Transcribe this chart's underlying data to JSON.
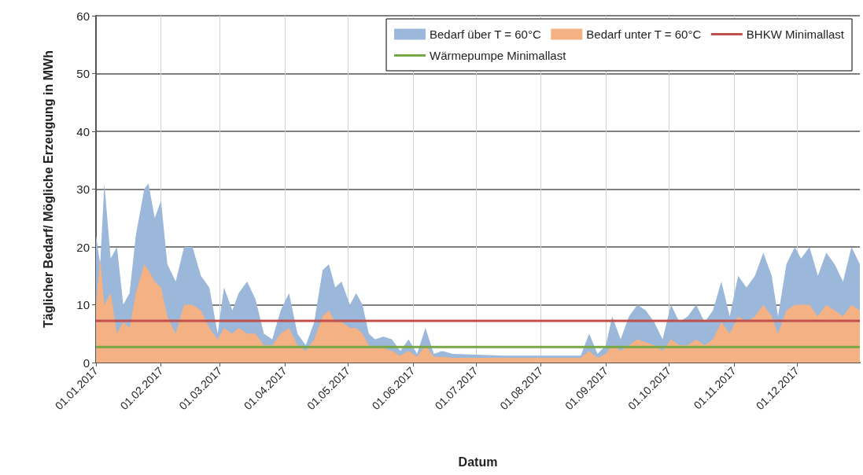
{
  "chart_data": {
    "type": "area",
    "xlabel": "Datum",
    "ylabel": "Täglicher Bedarf/ Mögliche Erzeugung in MWh",
    "x": [
      "2017-01-01",
      "2017-01-03",
      "2017-01-05",
      "2017-01-08",
      "2017-01-11",
      "2017-01-14",
      "2017-01-17",
      "2017-01-20",
      "2017-01-24",
      "2017-01-26",
      "2017-01-29",
      "2017-02-01",
      "2017-02-04",
      "2017-02-08",
      "2017-02-12",
      "2017-02-16",
      "2017-02-20",
      "2017-02-24",
      "2017-02-28",
      "2017-03-03",
      "2017-03-07",
      "2017-03-10",
      "2017-03-14",
      "2017-03-18",
      "2017-03-22",
      "2017-03-26",
      "2017-03-30",
      "2017-04-03",
      "2017-04-07",
      "2017-04-11",
      "2017-04-15",
      "2017-04-19",
      "2017-04-22",
      "2017-04-25",
      "2017-04-28",
      "2017-05-02",
      "2017-05-05",
      "2017-05-08",
      "2017-05-11",
      "2017-05-14",
      "2017-05-18",
      "2017-05-22",
      "2017-05-26",
      "2017-05-30",
      "2017-06-03",
      "2017-06-07",
      "2017-06-11",
      "2017-06-15",
      "2017-06-20",
      "2017-07-15",
      "2017-08-10",
      "2017-08-20",
      "2017-08-24",
      "2017-08-28",
      "2017-09-01",
      "2017-09-04",
      "2017-09-08",
      "2017-09-12",
      "2017-09-16",
      "2017-09-20",
      "2017-09-24",
      "2017-09-28",
      "2017-10-02",
      "2017-10-06",
      "2017-10-10",
      "2017-10-14",
      "2017-10-18",
      "2017-10-22",
      "2017-10-26",
      "2017-10-30",
      "2017-11-03",
      "2017-11-07",
      "2017-11-11",
      "2017-11-15",
      "2017-11-19",
      "2017-11-22",
      "2017-11-26",
      "2017-11-30",
      "2017-12-03",
      "2017-12-07",
      "2017-12-11",
      "2017-12-15",
      "2017-12-19",
      "2017-12-23",
      "2017-12-27",
      "2017-12-31"
    ],
    "series": [
      {
        "name": "Bedarf über T = 60°C",
        "color": "#9bb7d9",
        "values": [
          22,
          17,
          31,
          18,
          20,
          10,
          12,
          22,
          30,
          31,
          25,
          28,
          17,
          14,
          20,
          20,
          15,
          13,
          5,
          13,
          9,
          12,
          14,
          11,
          5,
          4,
          9,
          12,
          5,
          3,
          7,
          16,
          17,
          13,
          14,
          10,
          12,
          10,
          5,
          4,
          4.5,
          4,
          2,
          4,
          1.5,
          6,
          1.5,
          2,
          1.5,
          1.2,
          1.2,
          1.2,
          5,
          1.5,
          3,
          8,
          4,
          8,
          10,
          9,
          7,
          4,
          10,
          7,
          8,
          10,
          7,
          9,
          14,
          8,
          15,
          13,
          15,
          19,
          15,
          8,
          17,
          20,
          18,
          20,
          15,
          19,
          17,
          14,
          20,
          17
        ]
      },
      {
        "name": "Bedarf unter T = 60°C",
        "color": "#f4b183",
        "values": [
          10,
          18,
          10,
          12,
          5,
          7,
          6,
          12,
          17,
          16,
          14,
          13,
          8,
          5,
          10,
          10,
          9,
          6,
          4,
          6,
          5,
          6,
          5,
          5,
          3,
          3,
          5,
          6,
          3,
          2,
          4,
          8,
          9,
          7,
          7,
          6,
          6,
          5,
          3,
          2.5,
          2.5,
          2,
          1.2,
          2,
          1,
          3,
          1,
          1,
          0.8,
          0.8,
          0.8,
          0.8,
          2,
          0.8,
          1.5,
          3,
          2,
          3,
          4,
          3.5,
          3,
          2,
          4,
          3,
          3,
          4,
          3,
          4,
          7,
          5,
          8,
          7,
          8,
          10,
          8,
          5,
          9,
          10,
          10,
          10,
          8,
          10,
          9,
          8,
          10,
          9
        ]
      },
      {
        "name": "BHKW Minimallast",
        "type": "line",
        "color": "#c0504d",
        "x": [
          "2017-01-01",
          "2017-12-31"
        ],
        "values": [
          7.2,
          7.2
        ]
      },
      {
        "name": "Wärmepumpe Minimallast",
        "type": "line",
        "color": "#77a845",
        "x": [
          "2017-01-01",
          "2017-12-31"
        ],
        "values": [
          2.7,
          2.7
        ]
      }
    ],
    "xlim": [
      "2017-01-01",
      "2017-12-31"
    ],
    "xticks": [
      {
        "value": "2017-01-01",
        "label": "01.01.2017"
      },
      {
        "value": "2017-02-01",
        "label": "01.02.2017"
      },
      {
        "value": "2017-03-01",
        "label": "01.03.2017"
      },
      {
        "value": "2017-04-01",
        "label": "01.04.2017"
      },
      {
        "value": "2017-05-01",
        "label": "01.05.2017"
      },
      {
        "value": "2017-06-01",
        "label": "01.06.2017"
      },
      {
        "value": "2017-07-01",
        "label": "01.07.2017"
      },
      {
        "value": "2017-08-01",
        "label": "01.08.2017"
      },
      {
        "value": "2017-09-01",
        "label": "01.09.2017"
      },
      {
        "value": "2017-10-01",
        "label": "01.10.2017"
      },
      {
        "value": "2017-11-01",
        "label": "01.11.2017"
      },
      {
        "value": "2017-12-01",
        "label": "01.12.2017"
      }
    ],
    "ylim": [
      0,
      60
    ],
    "yticks": [
      0,
      10,
      20,
      30,
      40,
      50,
      60
    ],
    "grid": true,
    "legend": "top right",
    "marker": "none"
  }
}
